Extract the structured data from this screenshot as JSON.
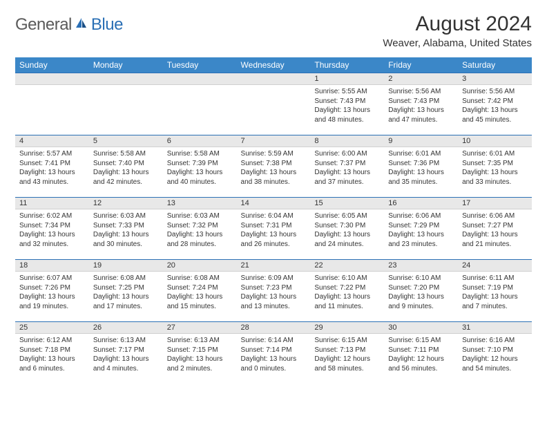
{
  "logo": {
    "text_general": "General",
    "text_blue": "Blue",
    "accent_color": "#2a6fb5",
    "gray_color": "#5a5a5a"
  },
  "header": {
    "month_title": "August 2024",
    "location": "Weaver, Alabama, United States"
  },
  "calendar": {
    "header_bg": "#3b87c8",
    "header_text_color": "#ffffff",
    "day_header_bg": "#e8e8e8",
    "day_border_color": "#2a6fb5",
    "columns": [
      "Sunday",
      "Monday",
      "Tuesday",
      "Wednesday",
      "Thursday",
      "Friday",
      "Saturday"
    ],
    "weeks": [
      [
        {
          "day": "",
          "sunrise": "",
          "sunset": "",
          "daylight": ""
        },
        {
          "day": "",
          "sunrise": "",
          "sunset": "",
          "daylight": ""
        },
        {
          "day": "",
          "sunrise": "",
          "sunset": "",
          "daylight": ""
        },
        {
          "day": "",
          "sunrise": "",
          "sunset": "",
          "daylight": ""
        },
        {
          "day": "1",
          "sunrise": "Sunrise: 5:55 AM",
          "sunset": "Sunset: 7:43 PM",
          "daylight": "Daylight: 13 hours and 48 minutes."
        },
        {
          "day": "2",
          "sunrise": "Sunrise: 5:56 AM",
          "sunset": "Sunset: 7:43 PM",
          "daylight": "Daylight: 13 hours and 47 minutes."
        },
        {
          "day": "3",
          "sunrise": "Sunrise: 5:56 AM",
          "sunset": "Sunset: 7:42 PM",
          "daylight": "Daylight: 13 hours and 45 minutes."
        }
      ],
      [
        {
          "day": "4",
          "sunrise": "Sunrise: 5:57 AM",
          "sunset": "Sunset: 7:41 PM",
          "daylight": "Daylight: 13 hours and 43 minutes."
        },
        {
          "day": "5",
          "sunrise": "Sunrise: 5:58 AM",
          "sunset": "Sunset: 7:40 PM",
          "daylight": "Daylight: 13 hours and 42 minutes."
        },
        {
          "day": "6",
          "sunrise": "Sunrise: 5:58 AM",
          "sunset": "Sunset: 7:39 PM",
          "daylight": "Daylight: 13 hours and 40 minutes."
        },
        {
          "day": "7",
          "sunrise": "Sunrise: 5:59 AM",
          "sunset": "Sunset: 7:38 PM",
          "daylight": "Daylight: 13 hours and 38 minutes."
        },
        {
          "day": "8",
          "sunrise": "Sunrise: 6:00 AM",
          "sunset": "Sunset: 7:37 PM",
          "daylight": "Daylight: 13 hours and 37 minutes."
        },
        {
          "day": "9",
          "sunrise": "Sunrise: 6:01 AM",
          "sunset": "Sunset: 7:36 PM",
          "daylight": "Daylight: 13 hours and 35 minutes."
        },
        {
          "day": "10",
          "sunrise": "Sunrise: 6:01 AM",
          "sunset": "Sunset: 7:35 PM",
          "daylight": "Daylight: 13 hours and 33 minutes."
        }
      ],
      [
        {
          "day": "11",
          "sunrise": "Sunrise: 6:02 AM",
          "sunset": "Sunset: 7:34 PM",
          "daylight": "Daylight: 13 hours and 32 minutes."
        },
        {
          "day": "12",
          "sunrise": "Sunrise: 6:03 AM",
          "sunset": "Sunset: 7:33 PM",
          "daylight": "Daylight: 13 hours and 30 minutes."
        },
        {
          "day": "13",
          "sunrise": "Sunrise: 6:03 AM",
          "sunset": "Sunset: 7:32 PM",
          "daylight": "Daylight: 13 hours and 28 minutes."
        },
        {
          "day": "14",
          "sunrise": "Sunrise: 6:04 AM",
          "sunset": "Sunset: 7:31 PM",
          "daylight": "Daylight: 13 hours and 26 minutes."
        },
        {
          "day": "15",
          "sunrise": "Sunrise: 6:05 AM",
          "sunset": "Sunset: 7:30 PM",
          "daylight": "Daylight: 13 hours and 24 minutes."
        },
        {
          "day": "16",
          "sunrise": "Sunrise: 6:06 AM",
          "sunset": "Sunset: 7:29 PM",
          "daylight": "Daylight: 13 hours and 23 minutes."
        },
        {
          "day": "17",
          "sunrise": "Sunrise: 6:06 AM",
          "sunset": "Sunset: 7:27 PM",
          "daylight": "Daylight: 13 hours and 21 minutes."
        }
      ],
      [
        {
          "day": "18",
          "sunrise": "Sunrise: 6:07 AM",
          "sunset": "Sunset: 7:26 PM",
          "daylight": "Daylight: 13 hours and 19 minutes."
        },
        {
          "day": "19",
          "sunrise": "Sunrise: 6:08 AM",
          "sunset": "Sunset: 7:25 PM",
          "daylight": "Daylight: 13 hours and 17 minutes."
        },
        {
          "day": "20",
          "sunrise": "Sunrise: 6:08 AM",
          "sunset": "Sunset: 7:24 PM",
          "daylight": "Daylight: 13 hours and 15 minutes."
        },
        {
          "day": "21",
          "sunrise": "Sunrise: 6:09 AM",
          "sunset": "Sunset: 7:23 PM",
          "daylight": "Daylight: 13 hours and 13 minutes."
        },
        {
          "day": "22",
          "sunrise": "Sunrise: 6:10 AM",
          "sunset": "Sunset: 7:22 PM",
          "daylight": "Daylight: 13 hours and 11 minutes."
        },
        {
          "day": "23",
          "sunrise": "Sunrise: 6:10 AM",
          "sunset": "Sunset: 7:20 PM",
          "daylight": "Daylight: 13 hours and 9 minutes."
        },
        {
          "day": "24",
          "sunrise": "Sunrise: 6:11 AM",
          "sunset": "Sunset: 7:19 PM",
          "daylight": "Daylight: 13 hours and 7 minutes."
        }
      ],
      [
        {
          "day": "25",
          "sunrise": "Sunrise: 6:12 AM",
          "sunset": "Sunset: 7:18 PM",
          "daylight": "Daylight: 13 hours and 6 minutes."
        },
        {
          "day": "26",
          "sunrise": "Sunrise: 6:13 AM",
          "sunset": "Sunset: 7:17 PM",
          "daylight": "Daylight: 13 hours and 4 minutes."
        },
        {
          "day": "27",
          "sunrise": "Sunrise: 6:13 AM",
          "sunset": "Sunset: 7:15 PM",
          "daylight": "Daylight: 13 hours and 2 minutes."
        },
        {
          "day": "28",
          "sunrise": "Sunrise: 6:14 AM",
          "sunset": "Sunset: 7:14 PM",
          "daylight": "Daylight: 13 hours and 0 minutes."
        },
        {
          "day": "29",
          "sunrise": "Sunrise: 6:15 AM",
          "sunset": "Sunset: 7:13 PM",
          "daylight": "Daylight: 12 hours and 58 minutes."
        },
        {
          "day": "30",
          "sunrise": "Sunrise: 6:15 AM",
          "sunset": "Sunset: 7:11 PM",
          "daylight": "Daylight: 12 hours and 56 minutes."
        },
        {
          "day": "31",
          "sunrise": "Sunrise: 6:16 AM",
          "sunset": "Sunset: 7:10 PM",
          "daylight": "Daylight: 12 hours and 54 minutes."
        }
      ]
    ]
  }
}
